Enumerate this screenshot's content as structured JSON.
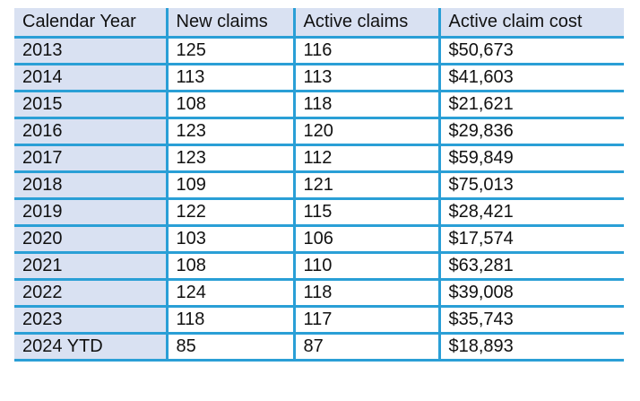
{
  "table": {
    "headers": [
      "Calendar Year",
      "New claims",
      "Active claims",
      "Active claim cost"
    ],
    "rows": [
      [
        "2013",
        "125",
        "116",
        "$50,673"
      ],
      [
        "2014",
        "113",
        "113",
        "$41,603"
      ],
      [
        "2015",
        "108",
        "118",
        "$21,621"
      ],
      [
        "2016",
        "123",
        "120",
        "$29,836"
      ],
      [
        "2017",
        "123",
        "112",
        "$59,849"
      ],
      [
        "2018",
        "109",
        "121",
        "$75,013"
      ],
      [
        "2019",
        "122",
        "115",
        "$28,421"
      ],
      [
        "2020",
        "103",
        "106",
        "$17,574"
      ],
      [
        "2021",
        "108",
        "110",
        "$63,281"
      ],
      [
        "2022",
        "124",
        "118",
        "$39,008"
      ],
      [
        "2023",
        "118",
        "117",
        "$35,743"
      ],
      [
        "2024 YTD",
        "85",
        "87",
        "$18,893"
      ]
    ]
  },
  "colors": {
    "header_fill": "#d9e1f2",
    "border": "#2a9fd6"
  }
}
